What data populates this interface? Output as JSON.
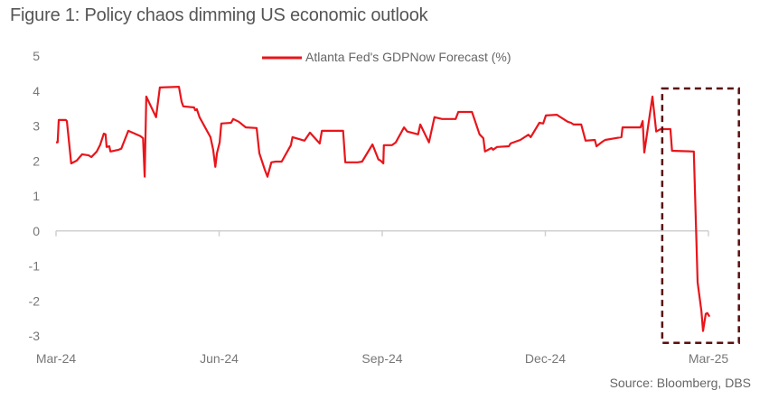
{
  "title": "Figure 1: Policy chaos dimming US economic outlook",
  "source": "Source: Bloomberg, DBS",
  "chart_data": {
    "type": "line",
    "title": "Figure 1: Policy chaos dimming US economic outlook",
    "xlabel": "",
    "ylabel": "",
    "x_unit": "months since Mar-24",
    "xlim": [
      0,
      12
    ],
    "ylim": [
      -3,
      5
    ],
    "yticks": [
      5,
      4,
      3,
      2,
      1,
      0,
      -1,
      -2,
      -3
    ],
    "xticks": [
      {
        "x": 0,
        "label": "Mar-24"
      },
      {
        "x": 3,
        "label": "Jun-24"
      },
      {
        "x": 6,
        "label": "Sep-24"
      },
      {
        "x": 9,
        "label": "Dec-24"
      },
      {
        "x": 12,
        "label": "Mar-25"
      }
    ],
    "grid": false,
    "legend_position": "top-center",
    "colors": {
      "line": "#e8151b",
      "highlight": "#5a0f0f",
      "axis": "#d0d0d0"
    },
    "highlight_box": {
      "x": [
        11.15,
        12.56
      ],
      "y": [
        -3.2,
        4.07
      ]
    },
    "series": [
      {
        "name": "Atlanta Fed's GDPNow Forecast (%)",
        "points": [
          [
            0,
            2.53
          ],
          [
            0.03,
            2.53
          ],
          [
            0.05,
            3.17
          ],
          [
            0.18,
            3.17
          ],
          [
            0.2,
            3.14
          ],
          [
            0.28,
            1.93
          ],
          [
            0.38,
            2.01
          ],
          [
            0.48,
            2.19
          ],
          [
            0.6,
            2.16
          ],
          [
            0.65,
            2.11
          ],
          [
            0.75,
            2.27
          ],
          [
            0.81,
            2.45
          ],
          [
            0.88,
            2.78
          ],
          [
            0.91,
            2.76
          ],
          [
            0.93,
            2.4
          ],
          [
            0.98,
            2.42
          ],
          [
            1.0,
            2.27
          ],
          [
            1.15,
            2.32
          ],
          [
            1.2,
            2.35
          ],
          [
            1.33,
            2.86
          ],
          [
            1.55,
            2.71
          ],
          [
            1.6,
            2.65
          ],
          [
            1.63,
            1.55
          ],
          [
            1.66,
            3.84
          ],
          [
            1.84,
            3.25
          ],
          [
            1.91,
            4.1
          ],
          [
            2.26,
            4.12
          ],
          [
            2.31,
            3.69
          ],
          [
            2.34,
            3.56
          ],
          [
            2.54,
            3.53
          ],
          [
            2.56,
            3.45
          ],
          [
            2.59,
            3.48
          ],
          [
            2.64,
            3.25
          ],
          [
            2.84,
            2.68
          ],
          [
            2.89,
            2.32
          ],
          [
            2.93,
            1.83
          ],
          [
            2.96,
            2.22
          ],
          [
            3.01,
            2.53
          ],
          [
            3.04,
            3.07
          ],
          [
            3.22,
            3.09
          ],
          [
            3.26,
            3.2
          ],
          [
            3.36,
            3.12
          ],
          [
            3.49,
            2.96
          ],
          [
            3.69,
            2.94
          ],
          [
            3.74,
            2.22
          ],
          [
            3.84,
            1.75
          ],
          [
            3.89,
            1.55
          ],
          [
            3.96,
            1.96
          ],
          [
            4.04,
            1.98
          ],
          [
            4.15,
            1.98
          ],
          [
            4.32,
            2.45
          ],
          [
            4.35,
            2.68
          ],
          [
            4.57,
            2.58
          ],
          [
            4.67,
            2.81
          ],
          [
            4.85,
            2.5
          ],
          [
            4.89,
            2.86
          ],
          [
            5.28,
            2.86
          ],
          [
            5.32,
            1.96
          ],
          [
            5.55,
            1.96
          ],
          [
            5.63,
            1.98
          ],
          [
            5.82,
            2.47
          ],
          [
            5.93,
            2.04
          ],
          [
            5.97,
            2.01
          ],
          [
            6.02,
            1.93
          ],
          [
            6.03,
            2.45
          ],
          [
            6.18,
            2.45
          ],
          [
            6.25,
            2.53
          ],
          [
            6.4,
            2.96
          ],
          [
            6.46,
            2.84
          ],
          [
            6.66,
            2.76
          ],
          [
            6.7,
            3.04
          ],
          [
            6.86,
            2.53
          ],
          [
            6.96,
            3.25
          ],
          [
            7.1,
            3.2
          ],
          [
            7.35,
            3.2
          ],
          [
            7.4,
            3.4
          ],
          [
            7.65,
            3.4
          ],
          [
            7.79,
            2.76
          ],
          [
            7.86,
            2.65
          ],
          [
            7.89,
            2.27
          ],
          [
            8.01,
            2.37
          ],
          [
            8.04,
            2.32
          ],
          [
            8.11,
            2.4
          ],
          [
            8.33,
            2.42
          ],
          [
            8.36,
            2.5
          ],
          [
            8.54,
            2.6
          ],
          [
            8.69,
            2.75
          ],
          [
            8.73,
            2.68
          ],
          [
            8.89,
            3.09
          ],
          [
            8.96,
            3.07
          ],
          [
            9.01,
            3.3
          ],
          [
            9.21,
            3.32
          ],
          [
            9.41,
            3.12
          ],
          [
            9.47,
            3.09
          ],
          [
            9.52,
            3.04
          ],
          [
            9.66,
            3.04
          ],
          [
            9.74,
            2.58
          ],
          [
            9.91,
            2.6
          ],
          [
            9.94,
            2.42
          ],
          [
            10.05,
            2.55
          ],
          [
            10.1,
            2.6
          ],
          [
            10.29,
            2.65
          ],
          [
            10.4,
            2.68
          ],
          [
            10.42,
            2.96
          ],
          [
            10.75,
            2.96
          ],
          [
            10.79,
            3.14
          ],
          [
            10.82,
            2.24
          ],
          [
            10.97,
            3.84
          ],
          [
            11.04,
            2.84
          ],
          [
            11.12,
            2.91
          ],
          [
            11.3,
            2.91
          ],
          [
            11.33,
            2.29
          ],
          [
            11.73,
            2.27
          ],
          [
            11.8,
            -1.47
          ],
          [
            11.87,
            -2.29
          ],
          [
            11.9,
            -2.86
          ],
          [
            11.95,
            -2.37
          ],
          [
            11.98,
            -2.35
          ],
          [
            12.02,
            -2.45
          ]
        ]
      }
    ]
  }
}
